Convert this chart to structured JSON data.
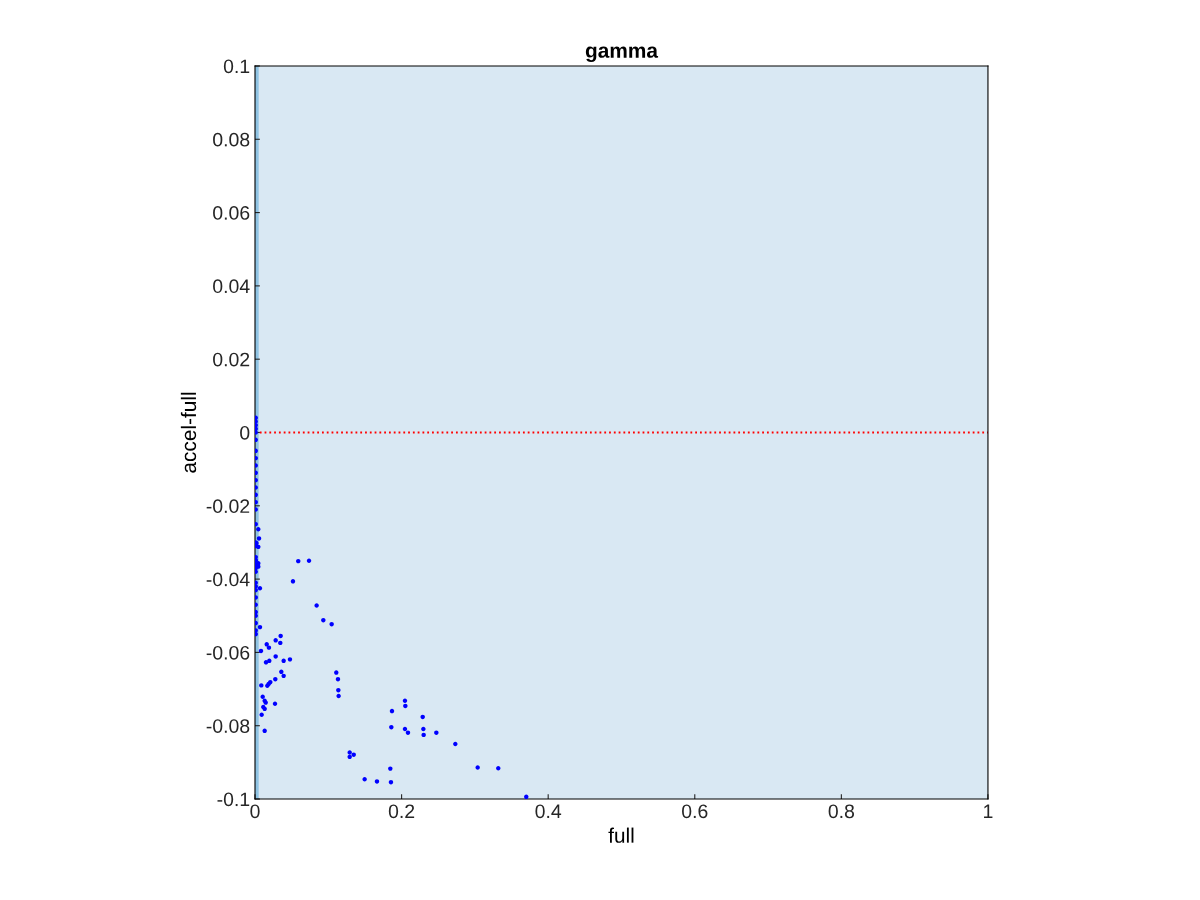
{
  "chart_data": {
    "type": "scatter",
    "title": "gamma",
    "xlabel": "full",
    "ylabel": "accel-full",
    "xlim": [
      0,
      1
    ],
    "ylim": [
      -0.1,
      0.1
    ],
    "xticks": [
      0,
      0.2,
      0.4,
      0.6,
      0.8,
      1
    ],
    "yticks": [
      -0.1,
      -0.08,
      -0.06,
      -0.04,
      -0.02,
      0,
      0.02,
      0.04,
      0.06,
      0.08,
      0.1
    ],
    "grid": false,
    "marker": "circle",
    "bands": [
      {
        "axis": "x",
        "from": 0,
        "to": 1,
        "color": "#d9e8f3"
      },
      {
        "axis": "x",
        "from": 0,
        "to": 0.005,
        "color": "#8fc3e3"
      }
    ],
    "ref_lines": [
      {
        "axis": "y",
        "value": 0,
        "color": "#ff0000",
        "line_style": "dotted"
      }
    ],
    "series": [
      {
        "color": "#0000ff",
        "x": [
          0.001,
          0.001,
          0.001,
          0.001,
          0.001,
          0.001,
          0.001,
          0.001,
          0.001,
          0.001,
          0.001,
          0.001,
          0.001,
          0.001,
          0.001,
          0.001,
          0.001,
          0.001,
          0.001,
          0.001,
          0.001,
          0.001,
          0.001,
          0.001,
          0.001,
          0.001,
          0.001,
          0.001,
          0.001,
          0.001,
          0.001,
          0.001,
          0.001,
          0.0045,
          0.0055,
          0.002,
          0.0045,
          0.001,
          0.0045,
          0.0045,
          0.059,
          0.0737,
          0.0518,
          0.0841,
          0.0068,
          0.0932,
          0.1046,
          0.0068,
          0.0082,
          0.016,
          0.019,
          0.0282,
          0.035,
          0.0345,
          0.015,
          0.0195,
          0.0282,
          0.0391,
          0.0477,
          0.0359,
          0.0391,
          0.0277,
          0.0086,
          0.0168,
          0.0187,
          0.0209,
          0.0105,
          0.0132,
          0.0146,
          0.0113,
          0.0132,
          0.0273,
          0.0091,
          0.0132,
          0.1109,
          0.1132,
          0.1137,
          0.1141,
          0.1869,
          0.186,
          0.1292,
          0.1347,
          0.1292,
          0.1496,
          0.1664,
          0.1855,
          0.1846,
          0.2046,
          0.2051,
          0.2046,
          0.2087,
          0.2288,
          0.2297,
          0.2301,
          0.2474,
          0.2733,
          0.3038,
          0.3319,
          0.3701
        ],
        "values": [
          0.004,
          0.003,
          0.002,
          0.001,
          0,
          -0.002,
          -0.005,
          -0.007,
          -0.009,
          -0.011,
          -0.013,
          -0.015,
          -0.017,
          -0.019,
          -0.021,
          -0.025,
          -0.03,
          -0.031,
          -0.034,
          -0.035,
          -0.036,
          -0.037,
          -0.038,
          -0.041,
          -0.042,
          -0.043,
          -0.045,
          -0.047,
          -0.049,
          -0.05,
          -0.052,
          -0.054,
          -0.055,
          -0.0264,
          -0.0289,
          -0.0302,
          -0.0312,
          -0.0348,
          -0.0357,
          -0.0366,
          -0.0351,
          -0.035,
          -0.0406,
          -0.0472,
          -0.0425,
          -0.0512,
          -0.0523,
          -0.0531,
          -0.0596,
          -0.0578,
          -0.0587,
          -0.0567,
          -0.0555,
          -0.0574,
          -0.0627,
          -0.0623,
          -0.0611,
          -0.0623,
          -0.0619,
          -0.0653,
          -0.0664,
          -0.0673,
          -0.069,
          -0.0691,
          -0.0686,
          -0.0681,
          -0.0721,
          -0.0732,
          -0.0737,
          -0.0749,
          -0.0754,
          -0.074,
          -0.077,
          -0.0814,
          -0.0655,
          -0.0673,
          -0.0703,
          -0.0719,
          -0.076,
          -0.0804,
          -0.0873,
          -0.0879,
          -0.0885,
          -0.0946,
          -0.0952,
          -0.0954,
          -0.0917,
          -0.0732,
          -0.0746,
          -0.0809,
          -0.0819,
          -0.0776,
          -0.0809,
          -0.0825,
          -0.0819,
          -0.085,
          -0.0914,
          -0.0916,
          -0.0994
        ]
      }
    ]
  }
}
